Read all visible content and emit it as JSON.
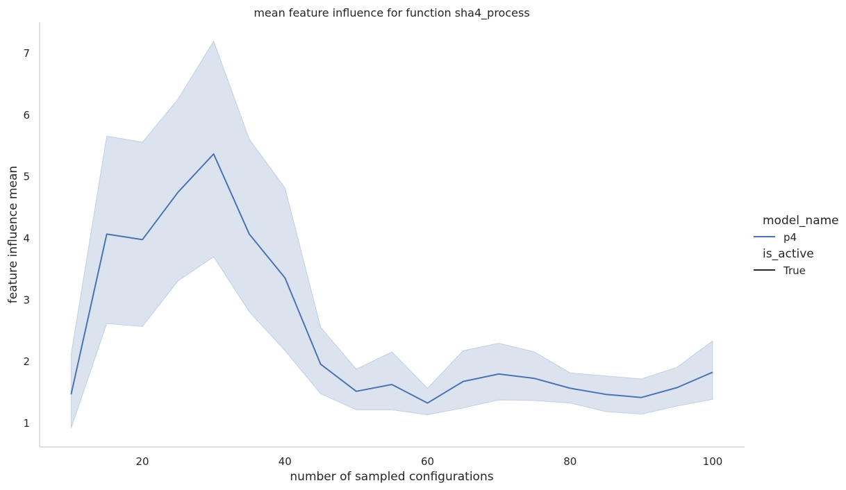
{
  "chart_data": {
    "type": "line",
    "title": "mean feature influence for function sha4_process",
    "xlabel": "number of sampled configurations",
    "ylabel": "feature influence mean",
    "xlim": [
      6,
      105
    ],
    "ylim": [
      0.6,
      7.5
    ],
    "xticks": [
      20,
      40,
      60,
      80,
      100
    ],
    "yticks": [
      1,
      2,
      3,
      4,
      5,
      6,
      7
    ],
    "grid": false,
    "legend": {
      "placement": "right",
      "sections": [
        {
          "title": "model_name",
          "entries": [
            {
              "label": "p4",
              "color": "#4c72b0"
            }
          ]
        },
        {
          "title": "is_active",
          "entries": [
            {
              "label": "True",
              "color": "#262626"
            }
          ]
        }
      ]
    },
    "series": [
      {
        "name": "p4",
        "color": "#4c72b0",
        "band_color": "#4c72b0",
        "x": [
          10,
          15,
          20,
          25,
          30,
          35,
          40,
          45,
          50,
          55,
          60,
          65,
          70,
          75,
          80,
          85,
          90,
          95,
          100
        ],
        "y": [
          1.47,
          4.07,
          3.98,
          4.75,
          5.37,
          4.07,
          3.36,
          1.96,
          1.52,
          1.63,
          1.33,
          1.68,
          1.8,
          1.73,
          1.57,
          1.47,
          1.42,
          1.58,
          1.83
        ],
        "lower": [
          0.92,
          2.62,
          2.57,
          3.31,
          3.7,
          2.81,
          2.18,
          1.48,
          1.22,
          1.22,
          1.14,
          1.25,
          1.38,
          1.37,
          1.33,
          1.19,
          1.15,
          1.28,
          1.39
        ],
        "upper": [
          2.12,
          5.66,
          5.56,
          6.26,
          7.2,
          5.61,
          4.82,
          2.56,
          1.88,
          2.16,
          1.57,
          2.18,
          2.3,
          2.16,
          1.82,
          1.77,
          1.72,
          1.91,
          2.34
        ]
      }
    ]
  }
}
